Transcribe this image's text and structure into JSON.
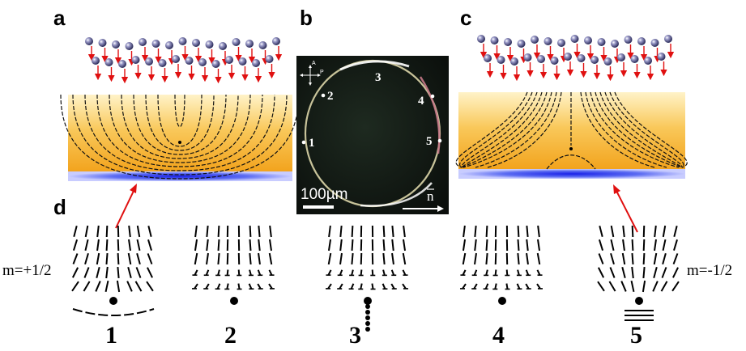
{
  "panels": {
    "a": "a",
    "b": "b",
    "c": "c",
    "d": "d"
  },
  "micrograph": {
    "points": [
      "1",
      "2",
      "3",
      "4",
      "5"
    ],
    "scale_bar": "100µm",
    "director": "n",
    "polarizer_labels": [
      "A",
      "P"
    ]
  },
  "defects": {
    "left_charge": "m=+1/2",
    "right_charge": "m=-1/2",
    "numbers": [
      "1",
      "2",
      "3",
      "4",
      "5"
    ]
  },
  "colors": {
    "slab_top": "#fff3c8",
    "slab_bottom": "#f2a21b",
    "substrate": "#2f3cf2",
    "arrow": "#e01010",
    "particle": "#4a4a7a"
  }
}
